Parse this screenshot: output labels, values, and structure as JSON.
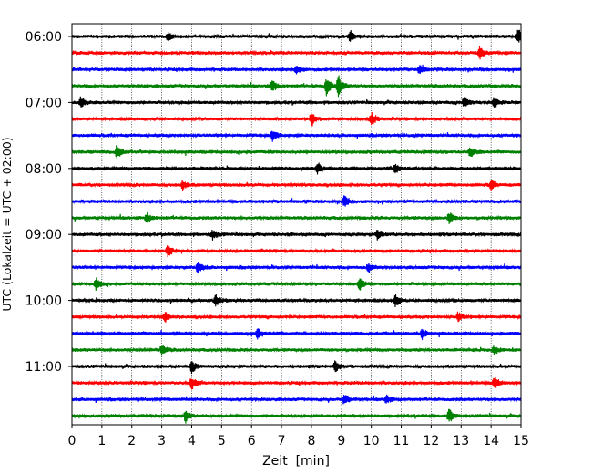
{
  "chart_data": {
    "type": "line",
    "title": "",
    "xlabel": "Zeit  [min]",
    "ylabel": "UTC (Lokalzeit = UTC + 02:00)",
    "xlim": [
      0,
      15
    ],
    "x_ticks": [
      0,
      1,
      2,
      3,
      4,
      5,
      6,
      7,
      8,
      9,
      10,
      11,
      12,
      13,
      14,
      15
    ],
    "x_tick_labels": [
      "0",
      "1",
      "2",
      "3",
      "4",
      "5",
      "6",
      "7",
      "8",
      "9",
      "10",
      "11",
      "12",
      "13",
      "14",
      "15"
    ],
    "vertical_grid": true,
    "y_tick_labels": [
      "06:00",
      "07:00",
      "08:00",
      "09:00",
      "10:00",
      "11:00"
    ],
    "trace_minutes": 15,
    "trace_colors": [
      "#000000",
      "#ff0000",
      "#0000ff",
      "#008000"
    ],
    "trace_start_times": [
      "06:00",
      "06:15",
      "06:30",
      "06:45",
      "07:00",
      "07:15",
      "07:30",
      "07:45",
      "08:00",
      "08:15",
      "08:30",
      "08:45",
      "09:00",
      "09:15",
      "09:30",
      "09:45",
      "10:00",
      "10:15",
      "10:30",
      "10:45",
      "11:00",
      "11:15",
      "11:30",
      "11:45"
    ],
    "events": [
      [
        [
          3.2,
          0.5
        ],
        [
          9.3,
          0.7
        ],
        [
          14.9,
          1.0
        ]
      ],
      [
        [
          13.6,
          0.9
        ]
      ],
      [
        [
          7.5,
          0.7
        ],
        [
          11.6,
          0.6
        ]
      ],
      [
        [
          6.7,
          0.8
        ],
        [
          8.5,
          1.3
        ],
        [
          8.9,
          1.4
        ]
      ],
      [
        [
          0.3,
          0.8
        ],
        [
          13.1,
          0.8
        ],
        [
          14.1,
          0.7
        ]
      ],
      [
        [
          8.0,
          0.9
        ],
        [
          10.0,
          0.9
        ]
      ],
      [
        [
          6.7,
          0.8
        ]
      ],
      [
        [
          1.5,
          0.9
        ],
        [
          13.3,
          0.8
        ]
      ],
      [
        [
          8.2,
          0.7
        ],
        [
          10.8,
          0.7
        ]
      ],
      [
        [
          3.7,
          0.7
        ],
        [
          14.0,
          0.7
        ]
      ],
      [
        [
          9.1,
          0.8
        ]
      ],
      [
        [
          2.5,
          0.7
        ],
        [
          12.6,
          0.8
        ]
      ],
      [
        [
          4.7,
          0.7
        ],
        [
          10.2,
          0.7
        ]
      ],
      [
        [
          3.2,
          0.9
        ]
      ],
      [
        [
          4.2,
          0.8
        ],
        [
          9.9,
          0.7
        ]
      ],
      [
        [
          0.8,
          0.8
        ],
        [
          9.6,
          0.9
        ]
      ],
      [
        [
          4.8,
          0.8
        ],
        [
          10.8,
          0.8
        ]
      ],
      [
        [
          3.1,
          0.7
        ],
        [
          12.9,
          0.7
        ]
      ],
      [
        [
          6.2,
          0.7
        ],
        [
          11.7,
          0.7
        ]
      ],
      [
        [
          3.0,
          0.7
        ],
        [
          14.1,
          0.6
        ]
      ],
      [
        [
          4.0,
          0.8
        ],
        [
          8.8,
          0.8
        ]
      ],
      [
        [
          4.0,
          0.9
        ],
        [
          14.1,
          0.9
        ]
      ],
      [
        [
          9.1,
          0.8
        ],
        [
          10.5,
          0.6
        ]
      ],
      [
        [
          3.8,
          0.8
        ],
        [
          12.6,
          1.0
        ]
      ]
    ]
  }
}
